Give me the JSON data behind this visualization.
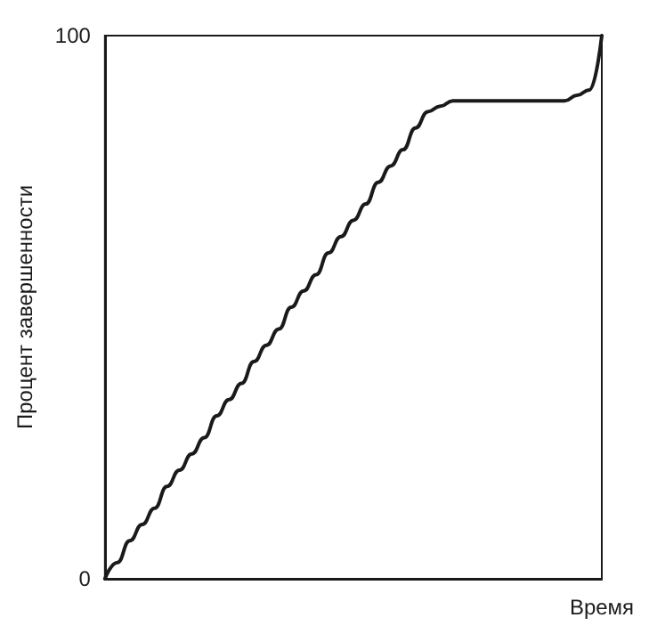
{
  "chart_data": {
    "type": "line",
    "ylabel": "Процент завершенности",
    "xlabel": "Время",
    "categories": [
      null,
      null,
      null,
      null,
      null,
      null,
      null,
      null,
      null,
      null,
      null,
      null,
      null,
      null,
      null,
      null,
      null,
      null,
      null,
      null,
      null,
      null,
      null,
      null,
      null,
      null,
      null,
      null,
      null,
      null,
      null,
      null,
      null,
      null,
      null,
      null,
      null,
      null,
      null,
      null,
      null
    ],
    "series": [
      {
        "color": "#1a1a1a",
        "values": [
          0,
          3,
          7,
          10,
          13,
          17,
          20,
          23,
          26,
          30,
          33,
          36,
          40,
          43,
          46,
          50,
          53,
          56,
          60,
          63,
          66,
          69,
          73,
          76,
          79,
          83,
          86,
          87,
          88,
          88,
          88,
          88,
          88,
          88,
          88,
          88,
          88,
          88,
          89,
          90,
          100
        ]
      }
    ],
    "ylim": [
      0,
      100
    ],
    "yticks": [
      0,
      100
    ],
    "grid": false,
    "marker": "none",
    "line_style": "solid"
  }
}
